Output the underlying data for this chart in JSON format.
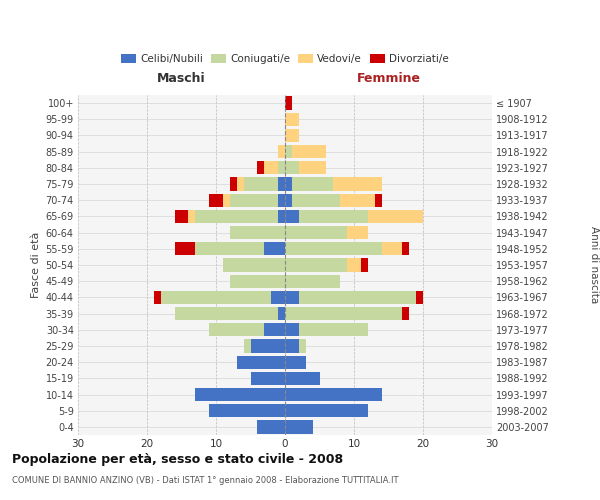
{
  "age_groups": [
    "0-4",
    "5-9",
    "10-14",
    "15-19",
    "20-24",
    "25-29",
    "30-34",
    "35-39",
    "40-44",
    "45-49",
    "50-54",
    "55-59",
    "60-64",
    "65-69",
    "70-74",
    "75-79",
    "80-84",
    "85-89",
    "90-94",
    "95-99",
    "100+"
  ],
  "birth_years": [
    "2003-2007",
    "1998-2002",
    "1993-1997",
    "1988-1992",
    "1983-1987",
    "1978-1982",
    "1973-1977",
    "1968-1972",
    "1963-1967",
    "1958-1962",
    "1953-1957",
    "1948-1952",
    "1943-1947",
    "1938-1942",
    "1933-1937",
    "1928-1932",
    "1923-1927",
    "1918-1922",
    "1913-1917",
    "1908-1912",
    "≤ 1907"
  ],
  "colors": {
    "celibi": "#4472c4",
    "coniugati": "#c5d8a0",
    "vedovi": "#ffd280",
    "divorziati": "#cc0000"
  },
  "males": {
    "celibi": [
      4,
      11,
      13,
      5,
      7,
      5,
      3,
      1,
      2,
      0,
      0,
      3,
      0,
      1,
      1,
      1,
      0,
      0,
      0,
      0,
      0
    ],
    "coniugati": [
      0,
      0,
      0,
      0,
      0,
      1,
      8,
      15,
      16,
      8,
      9,
      10,
      8,
      12,
      7,
      5,
      1,
      0,
      0,
      0,
      0
    ],
    "vedovi": [
      0,
      0,
      0,
      0,
      0,
      0,
      0,
      0,
      0,
      0,
      0,
      0,
      0,
      1,
      1,
      1,
      2,
      1,
      0,
      0,
      0
    ],
    "divorziati": [
      0,
      0,
      0,
      0,
      0,
      0,
      0,
      0,
      1,
      0,
      0,
      3,
      0,
      2,
      2,
      1,
      1,
      0,
      0,
      0,
      0
    ]
  },
  "females": {
    "celibi": [
      4,
      12,
      14,
      5,
      3,
      2,
      2,
      0,
      2,
      0,
      0,
      0,
      0,
      2,
      1,
      1,
      0,
      0,
      0,
      0,
      0
    ],
    "coniugati": [
      0,
      0,
      0,
      0,
      0,
      1,
      10,
      17,
      17,
      8,
      9,
      14,
      9,
      10,
      7,
      6,
      2,
      1,
      0,
      0,
      0
    ],
    "vedovi": [
      0,
      0,
      0,
      0,
      0,
      0,
      0,
      0,
      0,
      0,
      2,
      3,
      3,
      8,
      5,
      7,
      4,
      5,
      2,
      2,
      0
    ],
    "divorziati": [
      0,
      0,
      0,
      0,
      0,
      0,
      0,
      1,
      1,
      0,
      1,
      1,
      0,
      0,
      1,
      0,
      0,
      0,
      0,
      0,
      1
    ]
  },
  "xlim": 30,
  "title": "Popolazione per età, sesso e stato civile - 2008",
  "subtitle": "COMUNE DI BANNIO ANZINO (VB) - Dati ISTAT 1° gennaio 2008 - Elaborazione TUTTITALIA.IT",
  "ylabel_left": "Fasce di età",
  "ylabel_right": "Anni di nascita",
  "xlabel_left": "Maschi",
  "xlabel_right": "Femmine",
  "maschi_color": "#333333",
  "femmine_color": "#aa2222",
  "bg_color": "#f5f5f5"
}
